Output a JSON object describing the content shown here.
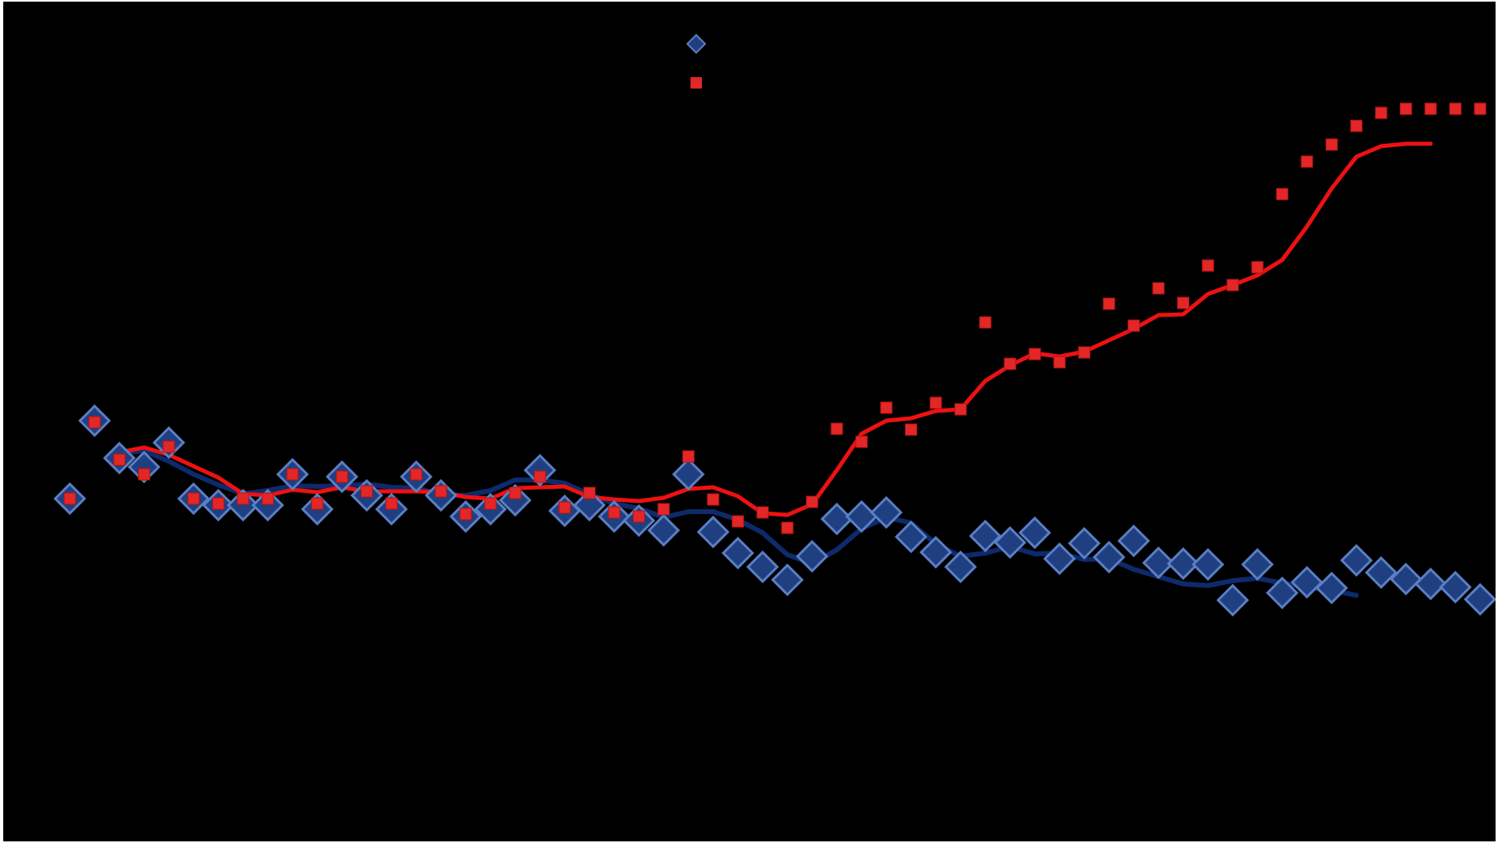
{
  "chart_data": {
    "type": "scatter",
    "legend_position": "top-center",
    "grid": false,
    "x": [
      0,
      1,
      2,
      3,
      4,
      5,
      6,
      7,
      8,
      9,
      10,
      11,
      12,
      13,
      14,
      15,
      16,
      17,
      18,
      19,
      20,
      21,
      22,
      23,
      24,
      25,
      26,
      27,
      28,
      29,
      30,
      31,
      32,
      33,
      34,
      35,
      36,
      37,
      38,
      39,
      40,
      41,
      42,
      43,
      44,
      45,
      46,
      47,
      48,
      49,
      50,
      51,
      52,
      53,
      54,
      55,
      56,
      57
    ],
    "xlim": [
      -0.6,
      57.3
    ],
    "ylim": [
      0,
      100
    ],
    "series": [
      {
        "marker": "diamond",
        "color": "#1f3f80",
        "edge_color": "#5b7fc4",
        "trend_color": "#0d2a6b",
        "values": [
          38.6,
          48.2,
          43.6,
          42.5,
          45.5,
          38.6,
          37.8,
          37.8,
          37.8,
          41.6,
          37.3,
          41.3,
          39.0,
          37.3,
          41.3,
          39.0,
          36.4,
          37.3,
          38.4,
          42.1,
          37.1,
          37.8,
          36.4,
          35.9,
          34.7,
          41.6,
          34.5,
          31.9,
          30.2,
          28.6,
          31.5,
          36.1,
          36.4,
          36.9,
          33.9,
          32.0,
          30.2,
          34.0,
          33.2,
          34.4,
          31.2,
          33.1,
          31.4,
          33.4,
          30.7,
          30.6,
          30.5,
          26.1,
          30.5,
          27.0,
          28.3,
          27.6,
          31.0,
          29.5,
          28.7,
          28.1,
          27.7,
          26.2
        ],
        "trend_start": 2,
        "trend": [
          44.2,
          44.5,
          43.2,
          41.6,
          40.3,
          39.2,
          39.6,
          40.2,
          40.1,
          40.2,
          40.4,
          40.0,
          39.9,
          39.1,
          39.0,
          39.6,
          40.9,
          40.9,
          40.5,
          39.1,
          38.0,
          37.4,
          36.3,
          37.0,
          37.0,
          36.0,
          34.4,
          31.7,
          30.6,
          32.3,
          34.9,
          36.3,
          35.6,
          33.0,
          31.5,
          31.9,
          32.7,
          31.8,
          31.9,
          31.1,
          31.2,
          29.9,
          29.0,
          28.1,
          27.9,
          28.5,
          28.8,
          28.2,
          27.7,
          27.3,
          26.7
        ]
      },
      {
        "marker": "square",
        "color": "#e32626",
        "edge_color": "#e32626",
        "trend_color": "#ee1111",
        "values": [
          38.6,
          48.0,
          43.4,
          41.6,
          45.0,
          38.6,
          38.0,
          38.6,
          38.6,
          41.6,
          38.0,
          41.3,
          39.5,
          38.0,
          41.6,
          39.5,
          36.7,
          38.0,
          39.3,
          41.3,
          37.5,
          39.3,
          36.9,
          36.4,
          37.3,
          43.8,
          38.5,
          35.8,
          36.9,
          35.0,
          38.2,
          47.2,
          45.6,
          49.8,
          47.1,
          50.4,
          49.6,
          60.3,
          55.2,
          56.4,
          55.4,
          56.6,
          62.6,
          59.9,
          64.5,
          62.7,
          67.3,
          64.9,
          67.1,
          76.1,
          80.1,
          82.2,
          84.5,
          86.1,
          86.6,
          86.6,
          86.6,
          86.6
        ],
        "trend_start": 2,
        "trend": [
          44.3,
          44.9,
          44.0,
          42.6,
          41.2,
          39.2,
          39.0,
          39.7,
          39.4,
          40.0,
          39.5,
          39.5,
          39.5,
          39.4,
          38.8,
          38.6,
          39.9,
          40.0,
          40.1,
          38.8,
          38.5,
          38.3,
          38.7,
          39.8,
          40.0,
          38.9,
          36.8,
          36.6,
          37.9,
          42.1,
          46.6,
          48.2,
          48.5,
          49.4,
          49.6,
          53.1,
          55.0,
          56.5,
          56.1,
          56.7,
          58.1,
          59.5,
          61.2,
          61.3,
          63.8,
          64.9,
          66.1,
          68.0,
          72.1,
          76.8,
          80.7,
          82.0,
          82.3,
          82.3
        ]
      }
    ]
  }
}
